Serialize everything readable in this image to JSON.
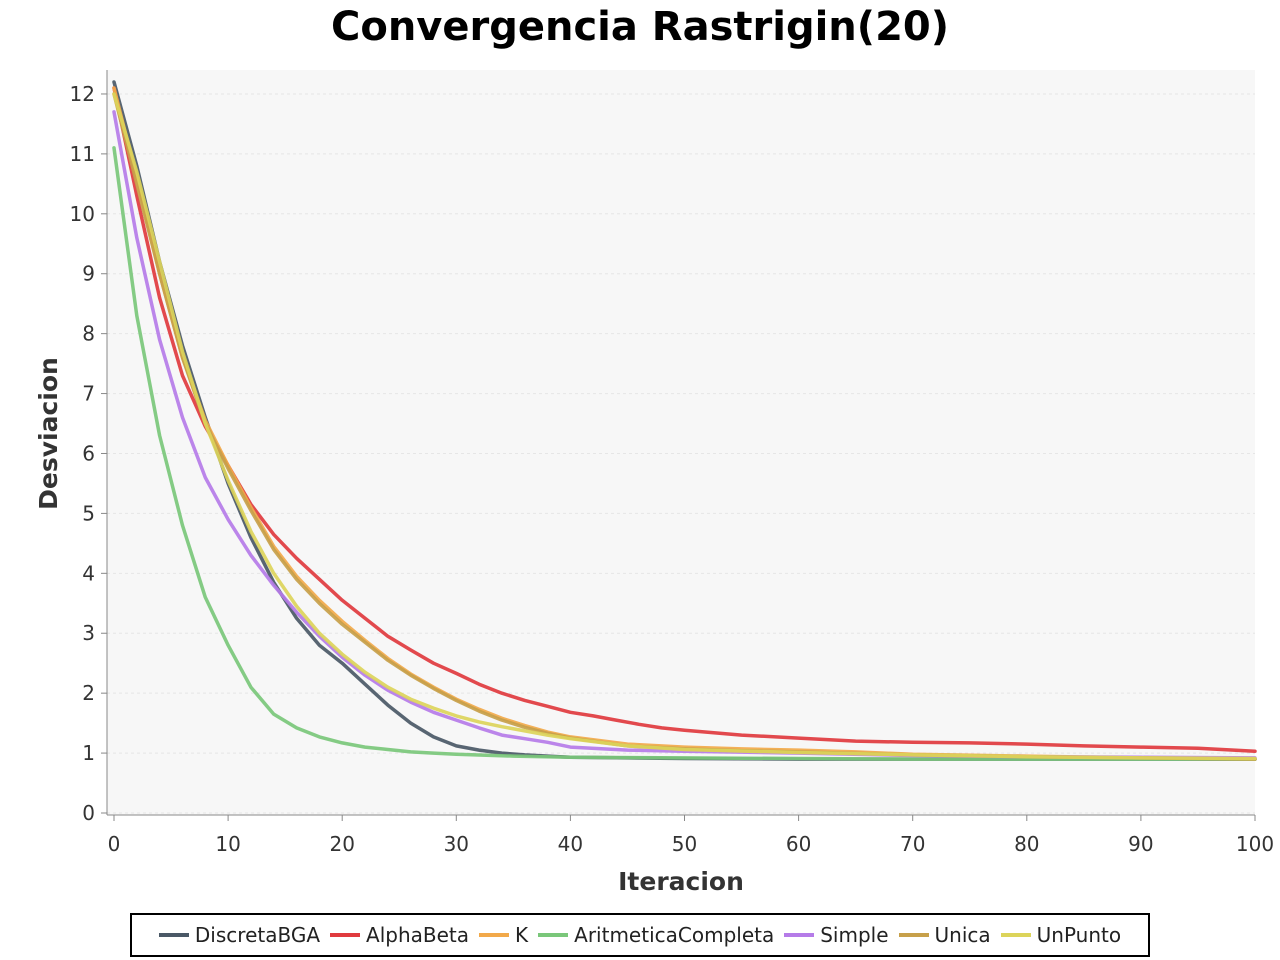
{
  "chart_data": {
    "type": "line",
    "title": "Convergencia Rastrigin(20)",
    "xlabel": "Iteracion",
    "ylabel": "Desviacion",
    "xlim": [
      0,
      100
    ],
    "ylim": [
      0,
      12.4
    ],
    "xticks": [
      0,
      10,
      20,
      30,
      40,
      50,
      60,
      70,
      80,
      90,
      100
    ],
    "yticks": [
      0,
      1,
      2,
      3,
      4,
      5,
      6,
      7,
      8,
      9,
      10,
      11,
      12
    ],
    "grid": true,
    "legend_position": "bottom",
    "series": [
      {
        "name": "DiscretaBGA",
        "color": "#4a5866",
        "x": [
          0,
          2,
          4,
          6,
          8,
          10,
          12,
          14,
          16,
          18,
          20,
          22,
          24,
          26,
          28,
          30,
          32,
          34,
          36,
          38,
          40,
          45,
          50,
          60,
          70,
          80,
          90,
          100
        ],
        "y": [
          12.2,
          10.8,
          9.2,
          7.8,
          6.6,
          5.5,
          4.6,
          3.85,
          3.25,
          2.8,
          2.5,
          2.15,
          1.8,
          1.5,
          1.27,
          1.12,
          1.05,
          1.0,
          0.97,
          0.95,
          0.93,
          0.92,
          0.91,
          0.9,
          0.9,
          0.9,
          0.9,
          0.9
        ]
      },
      {
        "name": "AlphaBeta",
        "color": "#e03a3e",
        "x": [
          0,
          2,
          4,
          6,
          8,
          10,
          12,
          14,
          16,
          18,
          20,
          22,
          24,
          26,
          28,
          30,
          32,
          34,
          36,
          38,
          40,
          42,
          44,
          46,
          48,
          50,
          55,
          60,
          65,
          70,
          75,
          80,
          85,
          90,
          95,
          100
        ],
        "y": [
          12.1,
          10.3,
          8.6,
          7.3,
          6.45,
          5.8,
          5.15,
          4.65,
          4.25,
          3.9,
          3.55,
          3.25,
          2.95,
          2.72,
          2.5,
          2.33,
          2.15,
          2.0,
          1.88,
          1.78,
          1.68,
          1.62,
          1.55,
          1.48,
          1.42,
          1.38,
          1.3,
          1.25,
          1.2,
          1.18,
          1.17,
          1.15,
          1.12,
          1.1,
          1.08,
          1.03
        ]
      },
      {
        "name": "K",
        "color": "#f2a94a",
        "x": [
          0,
          2,
          4,
          6,
          8,
          10,
          12,
          14,
          16,
          18,
          20,
          22,
          24,
          26,
          28,
          30,
          32,
          34,
          36,
          38,
          40,
          45,
          50,
          55,
          60,
          65,
          70,
          80,
          90,
          100
        ],
        "y": [
          12.1,
          10.6,
          9.0,
          7.6,
          6.55,
          5.8,
          5.1,
          4.45,
          3.95,
          3.55,
          3.2,
          2.88,
          2.58,
          2.32,
          2.1,
          1.9,
          1.73,
          1.58,
          1.46,
          1.35,
          1.27,
          1.15,
          1.1,
          1.07,
          1.05,
          1.02,
          0.98,
          0.95,
          0.92,
          0.9
        ]
      },
      {
        "name": "AritmeticaCompleta",
        "color": "#7ac77a",
        "x": [
          0,
          2,
          4,
          6,
          8,
          10,
          12,
          14,
          16,
          18,
          20,
          22,
          24,
          26,
          28,
          30,
          35,
          40,
          50,
          60,
          70,
          80,
          90,
          100
        ],
        "y": [
          11.1,
          8.3,
          6.3,
          4.8,
          3.6,
          2.8,
          2.1,
          1.65,
          1.42,
          1.27,
          1.17,
          1.1,
          1.06,
          1.02,
          1.0,
          0.98,
          0.95,
          0.93,
          0.92,
          0.91,
          0.9,
          0.9,
          0.9,
          0.9
        ]
      },
      {
        "name": "Simple",
        "color": "#b57be8",
        "x": [
          0,
          2,
          4,
          6,
          8,
          10,
          12,
          14,
          16,
          18,
          20,
          22,
          24,
          26,
          28,
          30,
          32,
          34,
          36,
          38,
          40,
          45,
          50,
          60,
          70,
          80,
          90,
          100
        ],
        "y": [
          11.7,
          9.6,
          7.9,
          6.6,
          5.6,
          4.9,
          4.3,
          3.8,
          3.35,
          2.95,
          2.6,
          2.3,
          2.05,
          1.85,
          1.68,
          1.55,
          1.42,
          1.3,
          1.24,
          1.18,
          1.1,
          1.05,
          1.03,
          1.0,
          0.96,
          0.94,
          0.93,
          0.92
        ]
      },
      {
        "name": "Unica",
        "color": "#c7a04a",
        "x": [
          0,
          2,
          4,
          6,
          8,
          10,
          12,
          14,
          16,
          18,
          20,
          22,
          24,
          26,
          28,
          30,
          32,
          34,
          36,
          38,
          40,
          45,
          50,
          55,
          60,
          70,
          80,
          90,
          100
        ],
        "y": [
          12.0,
          10.5,
          9.0,
          7.6,
          6.5,
          5.75,
          5.05,
          4.4,
          3.9,
          3.5,
          3.15,
          2.85,
          2.55,
          2.3,
          2.08,
          1.88,
          1.7,
          1.55,
          1.43,
          1.33,
          1.25,
          1.12,
          1.07,
          1.04,
          1.02,
          0.97,
          0.94,
          0.92,
          0.9
        ]
      },
      {
        "name": "UnPunto",
        "color": "#dcd45a",
        "x": [
          0,
          2,
          4,
          6,
          8,
          10,
          12,
          14,
          16,
          18,
          20,
          22,
          24,
          26,
          28,
          30,
          32,
          34,
          36,
          38,
          40,
          45,
          50,
          60,
          70,
          80,
          90,
          100
        ],
        "y": [
          12.0,
          10.7,
          9.2,
          7.7,
          6.5,
          5.55,
          4.7,
          4.0,
          3.45,
          3.0,
          2.65,
          2.35,
          2.1,
          1.9,
          1.75,
          1.62,
          1.52,
          1.44,
          1.37,
          1.3,
          1.24,
          1.12,
          1.06,
          1.01,
          0.97,
          0.94,
          0.92,
          0.91
        ]
      }
    ]
  }
}
